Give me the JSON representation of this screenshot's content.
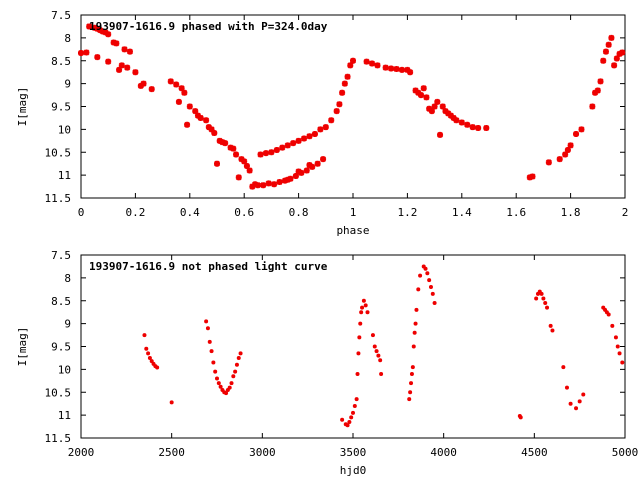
{
  "colors": {
    "marker": "#ee0000",
    "axis": "#000000",
    "background": "#ffffff"
  },
  "chart_data": [
    {
      "type": "scatter",
      "title": "193907-1616.9 phased with P=324.0day",
      "xlabel": "phase",
      "ylabel": "I[mag]",
      "xlim": [
        0,
        2
      ],
      "ylim": [
        7.5,
        11.5
      ],
      "y_inverted": true,
      "grid": false,
      "legend": "none",
      "marker": "star",
      "xticks": [
        "0",
        "0.2",
        "0.4",
        "0.6",
        "0.8",
        "1",
        "1.2",
        "1.4",
        "1.6",
        "1.8",
        "2"
      ],
      "yticks": [
        "7.5",
        "8",
        "8.5",
        "9",
        "9.5",
        "10",
        "10.5",
        "11",
        "11.5"
      ],
      "points": [
        [
          0.0,
          8.33
        ],
        [
          0.02,
          8.32
        ],
        [
          0.03,
          7.75
        ],
        [
          0.05,
          7.78
        ],
        [
          0.06,
          7.8
        ],
        [
          0.07,
          7.83
        ],
        [
          0.08,
          7.86
        ],
        [
          0.09,
          7.88
        ],
        [
          0.1,
          7.92
        ],
        [
          0.06,
          8.42
        ],
        [
          0.1,
          8.52
        ],
        [
          0.12,
          8.1
        ],
        [
          0.13,
          8.12
        ],
        [
          0.14,
          8.7
        ],
        [
          0.15,
          8.6
        ],
        [
          0.16,
          8.25
        ],
        [
          0.17,
          8.65
        ],
        [
          0.18,
          8.3
        ],
        [
          0.2,
          8.75
        ],
        [
          0.22,
          9.05
        ],
        [
          0.23,
          9.0
        ],
        [
          0.26,
          9.12
        ],
        [
          0.33,
          8.95
        ],
        [
          0.35,
          9.02
        ],
        [
          0.36,
          9.4
        ],
        [
          0.37,
          9.1
        ],
        [
          0.38,
          9.2
        ],
        [
          0.39,
          9.9
        ],
        [
          0.4,
          9.5
        ],
        [
          0.42,
          9.6
        ],
        [
          0.43,
          9.7
        ],
        [
          0.44,
          9.75
        ],
        [
          0.46,
          9.8
        ],
        [
          0.47,
          9.95
        ],
        [
          0.48,
          10.0
        ],
        [
          0.49,
          10.08
        ],
        [
          0.5,
          10.75
        ],
        [
          0.51,
          10.25
        ],
        [
          0.52,
          10.28
        ],
        [
          0.53,
          10.3
        ],
        [
          0.55,
          10.4
        ],
        [
          0.56,
          10.42
        ],
        [
          0.57,
          10.55
        ],
        [
          0.58,
          11.05
        ],
        [
          0.59,
          10.65
        ],
        [
          0.6,
          10.7
        ],
        [
          0.61,
          10.8
        ],
        [
          0.62,
          10.9
        ],
        [
          0.63,
          11.25
        ],
        [
          0.64,
          11.2
        ],
        [
          0.65,
          11.22
        ],
        [
          0.66,
          10.55
        ],
        [
          0.67,
          11.22
        ],
        [
          0.68,
          10.52
        ],
        [
          0.69,
          11.18
        ],
        [
          0.7,
          10.5
        ],
        [
          0.71,
          11.2
        ],
        [
          0.72,
          10.45
        ],
        [
          0.73,
          11.15
        ],
        [
          0.74,
          10.4
        ],
        [
          0.75,
          11.12
        ],
        [
          0.76,
          10.35
        ],
        [
          0.77,
          11.08
        ],
        [
          0.78,
          10.3
        ],
        [
          0.79,
          11.02
        ],
        [
          0.8,
          10.25
        ],
        [
          0.81,
          10.95
        ],
        [
          0.82,
          10.2
        ],
        [
          0.83,
          10.9
        ],
        [
          0.84,
          10.15
        ],
        [
          0.85,
          10.82
        ],
        [
          0.86,
          10.1
        ],
        [
          0.87,
          10.75
        ],
        [
          0.88,
          10.0
        ],
        [
          0.89,
          10.65
        ],
        [
          0.9,
          9.95
        ],
        [
          0.76,
          11.1
        ],
        [
          0.8,
          10.92
        ],
        [
          0.84,
          10.78
        ],
        [
          0.92,
          9.8
        ],
        [
          0.94,
          9.6
        ],
        [
          0.95,
          9.45
        ],
        [
          0.96,
          9.2
        ],
        [
          0.97,
          9.0
        ],
        [
          0.98,
          8.85
        ],
        [
          0.99,
          8.6
        ],
        [
          1.0,
          8.5
        ],
        [
          1.05,
          8.52
        ],
        [
          1.07,
          8.56
        ],
        [
          1.09,
          8.6
        ],
        [
          1.12,
          8.65
        ],
        [
          1.14,
          8.67
        ],
        [
          1.16,
          8.68
        ],
        [
          1.18,
          8.7
        ],
        [
          1.2,
          8.7
        ],
        [
          1.21,
          8.75
        ],
        [
          1.23,
          9.15
        ],
        [
          1.24,
          9.2
        ],
        [
          1.25,
          9.25
        ],
        [
          1.26,
          9.1
        ],
        [
          1.27,
          9.3
        ],
        [
          1.28,
          9.55
        ],
        [
          1.29,
          9.6
        ],
        [
          1.3,
          9.5
        ],
        [
          1.31,
          9.4
        ],
        [
          1.32,
          10.12
        ],
        [
          1.33,
          9.5
        ],
        [
          1.34,
          9.6
        ],
        [
          1.35,
          9.65
        ],
        [
          1.36,
          9.7
        ],
        [
          1.37,
          9.75
        ],
        [
          1.38,
          9.8
        ],
        [
          1.4,
          9.85
        ],
        [
          1.42,
          9.9
        ],
        [
          1.44,
          9.95
        ],
        [
          1.46,
          9.97
        ],
        [
          1.49,
          9.97
        ],
        [
          1.65,
          11.05
        ],
        [
          1.66,
          11.03
        ],
        [
          1.72,
          10.72
        ],
        [
          1.76,
          10.65
        ],
        [
          1.78,
          10.55
        ],
        [
          1.79,
          10.45
        ],
        [
          1.8,
          10.35
        ],
        [
          1.82,
          10.1
        ],
        [
          1.84,
          10.0
        ],
        [
          1.88,
          9.5
        ],
        [
          1.89,
          9.2
        ],
        [
          1.9,
          9.15
        ],
        [
          1.91,
          8.95
        ],
        [
          1.92,
          8.5
        ],
        [
          1.93,
          8.3
        ],
        [
          1.94,
          8.15
        ],
        [
          1.95,
          8.0
        ],
        [
          1.96,
          8.6
        ],
        [
          1.97,
          8.45
        ],
        [
          1.98,
          8.35
        ],
        [
          1.99,
          8.32
        ]
      ]
    },
    {
      "type": "scatter",
      "title": "193907-1616.9 not phased light curve",
      "xlabel": "hjd0",
      "ylabel": "I[mag]",
      "xlim": [
        2000,
        5000
      ],
      "ylim": [
        7.5,
        11.5
      ],
      "y_inverted": true,
      "grid": false,
      "legend": "none",
      "marker": "dot",
      "xticks": [
        "2000",
        "2500",
        "3000",
        "3500",
        "4000",
        "4500",
        "5000"
      ],
      "yticks": [
        "7.5",
        "8",
        "8.5",
        "9",
        "9.5",
        "10",
        "10.5",
        "11",
        "11.5"
      ],
      "points": [
        [
          2350,
          9.25
        ],
        [
          2360,
          9.55
        ],
        [
          2370,
          9.65
        ],
        [
          2380,
          9.75
        ],
        [
          2390,
          9.82
        ],
        [
          2400,
          9.88
        ],
        [
          2410,
          9.93
        ],
        [
          2420,
          9.96
        ],
        [
          2500,
          10.72
        ],
        [
          2690,
          8.95
        ],
        [
          2700,
          9.1
        ],
        [
          2710,
          9.4
        ],
        [
          2720,
          9.6
        ],
        [
          2730,
          9.85
        ],
        [
          2740,
          10.05
        ],
        [
          2750,
          10.2
        ],
        [
          2760,
          10.3
        ],
        [
          2770,
          10.38
        ],
        [
          2780,
          10.45
        ],
        [
          2790,
          10.5
        ],
        [
          2800,
          10.52
        ],
        [
          2810,
          10.45
        ],
        [
          2820,
          10.4
        ],
        [
          2830,
          10.3
        ],
        [
          2840,
          10.15
        ],
        [
          2850,
          10.05
        ],
        [
          2860,
          9.9
        ],
        [
          2870,
          9.75
        ],
        [
          2880,
          9.65
        ],
        [
          3440,
          11.1
        ],
        [
          3460,
          11.2
        ],
        [
          3470,
          11.22
        ],
        [
          3480,
          11.15
        ],
        [
          3490,
          11.05
        ],
        [
          3500,
          10.95
        ],
        [
          3510,
          10.8
        ],
        [
          3520,
          10.65
        ],
        [
          3525,
          10.1
        ],
        [
          3530,
          9.65
        ],
        [
          3535,
          9.3
        ],
        [
          3540,
          9.0
        ],
        [
          3545,
          8.75
        ],
        [
          3550,
          8.65
        ],
        [
          3560,
          8.5
        ],
        [
          3570,
          8.6
        ],
        [
          3580,
          8.75
        ],
        [
          3610,
          9.25
        ],
        [
          3620,
          9.5
        ],
        [
          3630,
          9.6
        ],
        [
          3640,
          9.7
        ],
        [
          3650,
          9.8
        ],
        [
          3655,
          10.1
        ],
        [
          3810,
          10.65
        ],
        [
          3815,
          10.5
        ],
        [
          3820,
          10.3
        ],
        [
          3825,
          10.1
        ],
        [
          3830,
          9.95
        ],
        [
          3835,
          9.5
        ],
        [
          3840,
          9.2
        ],
        [
          3845,
          9.0
        ],
        [
          3850,
          8.7
        ],
        [
          3860,
          8.25
        ],
        [
          3870,
          7.95
        ],
        [
          3890,
          7.75
        ],
        [
          3900,
          7.8
        ],
        [
          3910,
          7.9
        ],
        [
          3920,
          8.05
        ],
        [
          3930,
          8.2
        ],
        [
          3940,
          8.35
        ],
        [
          3950,
          8.55
        ],
        [
          4420,
          11.02
        ],
        [
          4425,
          11.05
        ],
        [
          4510,
          8.45
        ],
        [
          4520,
          8.35
        ],
        [
          4530,
          8.3
        ],
        [
          4540,
          8.35
        ],
        [
          4550,
          8.45
        ],
        [
          4560,
          8.55
        ],
        [
          4570,
          8.65
        ],
        [
          4590,
          9.05
        ],
        [
          4600,
          9.15
        ],
        [
          4660,
          9.95
        ],
        [
          4680,
          10.4
        ],
        [
          4700,
          10.75
        ],
        [
          4730,
          10.85
        ],
        [
          4750,
          10.7
        ],
        [
          4770,
          10.55
        ],
        [
          4880,
          8.65
        ],
        [
          4890,
          8.7
        ],
        [
          4900,
          8.75
        ],
        [
          4910,
          8.8
        ],
        [
          4930,
          9.05
        ],
        [
          4950,
          9.3
        ],
        [
          4960,
          9.5
        ],
        [
          4970,
          9.65
        ],
        [
          4985,
          9.85
        ]
      ]
    }
  ]
}
